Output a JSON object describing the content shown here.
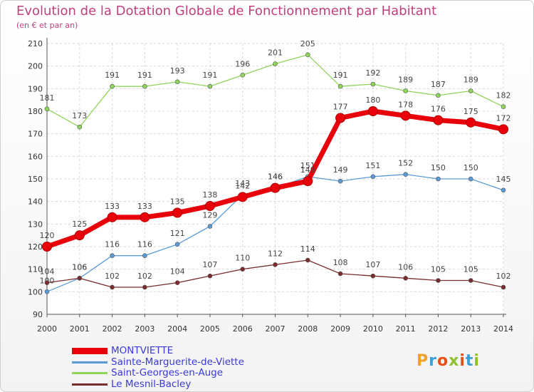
{
  "header": {
    "title": "Evolution de la Dotation Globale de Fonctionnement par Habitant",
    "subtitle": "(en € et par an)"
  },
  "logo": {
    "text": "Proxiti",
    "colors": [
      "#f0a030",
      "#3aa0d8",
      "#e8501a",
      "#90c030",
      "#e8501a",
      "#3aa0d8",
      "#90c030"
    ]
  },
  "chart_data": {
    "type": "line",
    "title": "Evolution de la Dotation Globale de Fonctionnement par Habitant",
    "subtitle": "(en € et par an)",
    "x": [
      2000,
      2001,
      2002,
      2003,
      2004,
      2005,
      2006,
      2007,
      2008,
      2009,
      2010,
      2011,
      2012,
      2013,
      2014
    ],
    "ylim": [
      90,
      210
    ],
    "yticks": [
      90,
      100,
      110,
      120,
      130,
      140,
      150,
      160,
      170,
      180,
      190,
      200,
      210
    ],
    "grid": true,
    "legend_position": "bottom-left",
    "series": [
      {
        "name": "MONTVIETTE",
        "color": "#e8000a",
        "values": [
          120,
          125,
          133,
          133,
          135,
          138,
          142,
          146,
          149,
          177,
          180,
          178,
          176,
          175,
          172
        ]
      },
      {
        "name": "Sainte-Marguerite-de-Viette",
        "color": "#5b9bd5",
        "values": [
          100,
          106,
          116,
          116,
          121,
          129,
          143,
          146,
          151,
          149,
          151,
          152,
          150,
          150,
          145
        ]
      },
      {
        "name": "Saint-Georges-en-Auge",
        "color": "#8fd45a",
        "values": [
          181,
          173,
          191,
          191,
          193,
          191,
          196,
          201,
          205,
          191,
          192,
          189,
          187,
          189,
          182
        ]
      },
      {
        "name": "Le Mesnil-Bacley",
        "color": "#7a2b2b",
        "values": [
          104,
          106,
          102,
          102,
          104,
          107,
          110,
          112,
          114,
          108,
          107,
          106,
          105,
          105,
          102
        ]
      }
    ]
  }
}
